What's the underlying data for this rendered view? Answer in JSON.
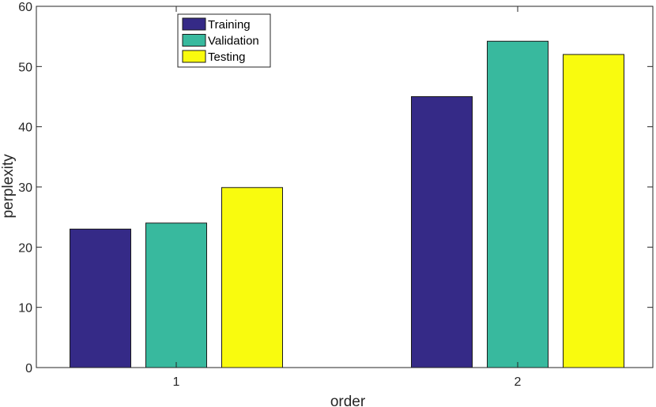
{
  "chart_data": {
    "type": "bar",
    "categories": [
      "1",
      "2"
    ],
    "series": [
      {
        "name": "Training",
        "color": "#352a87",
        "values": [
          23,
          45
        ]
      },
      {
        "name": "Validation",
        "color": "#38b99e",
        "values": [
          24,
          54.2
        ]
      },
      {
        "name": "Testing",
        "color": "#f9fb0e",
        "values": [
          29.9,
          52
        ]
      }
    ],
    "xlabel": "order",
    "ylabel": "perplexity",
    "ylim": [
      0,
      60
    ],
    "yticks": [
      "0",
      "10",
      "20",
      "30",
      "40",
      "50",
      "60"
    ],
    "grid": false,
    "legend_position": "top-left"
  }
}
